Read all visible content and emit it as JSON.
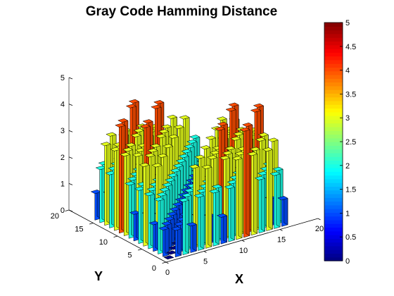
{
  "chart_data": {
    "type": "bar3d",
    "title": "Gray Code Hamming Distance",
    "xlabel": "X",
    "ylabel": "Y",
    "zlabel": "",
    "x_range": [
      0,
      20
    ],
    "y_range": [
      0,
      20
    ],
    "z_range": [
      0,
      5
    ],
    "x_ticks": [
      "0",
      "5",
      "10",
      "15",
      "20"
    ],
    "y_ticks": [
      "0",
      "5",
      "10",
      "15",
      "20"
    ],
    "z_ticks": [
      "0",
      "1",
      "2",
      "3",
      "4",
      "5"
    ],
    "grid_size": 16,
    "value_rule": "height at (x, y) = number of differing bits between Gray(x) and Gray(y), x,y = 0..15",
    "colormap": "jet",
    "colorbar": {
      "min": 0,
      "max": 5,
      "ticks": [
        "0",
        "0.5",
        "1",
        "1.5",
        "2",
        "2.5",
        "3",
        "3.5",
        "4",
        "4.5",
        "5"
      ]
    }
  }
}
